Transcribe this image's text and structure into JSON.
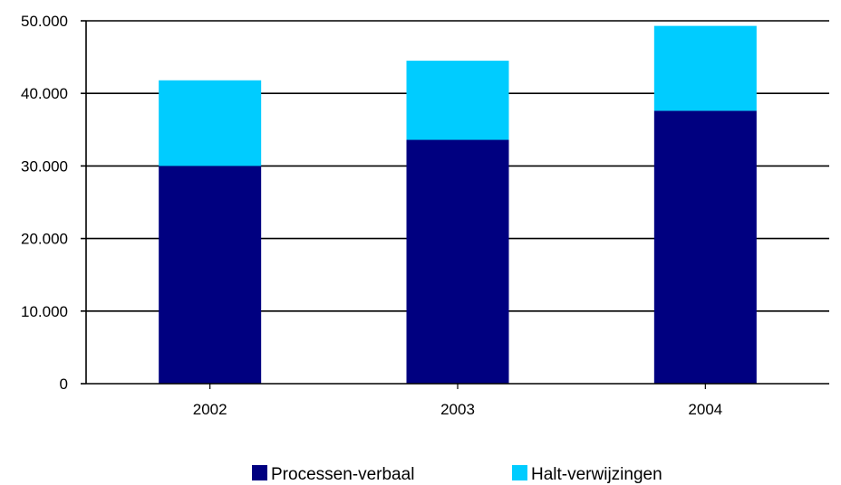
{
  "chart_data": {
    "type": "bar",
    "stacked": true,
    "categories": [
      "2002",
      "2003",
      "2004"
    ],
    "series": [
      {
        "name": "Processen-verbaal",
        "values": [
          30000,
          33600,
          37600
        ],
        "color": "#000080"
      },
      {
        "name": "Halt-verwijzingen",
        "values": [
          11800,
          10900,
          11700
        ],
        "color": "#00ccff"
      }
    ],
    "ylim": [
      0,
      50000
    ],
    "yticks": [
      0,
      10000,
      20000,
      30000,
      40000,
      50000
    ],
    "ytick_labels": [
      "0",
      "10.000",
      "20.000",
      "30.000",
      "40.000",
      "50.000"
    ],
    "grid": true,
    "legend_position": "bottom"
  }
}
